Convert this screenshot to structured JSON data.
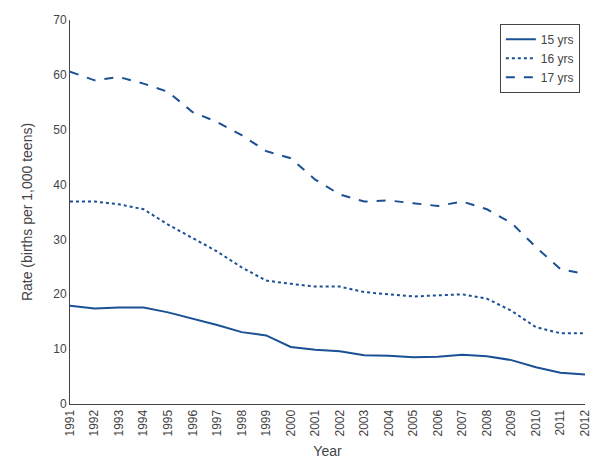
{
  "chart_data": {
    "type": "line",
    "xlabel": "Year",
    "ylabel": "Rate (births per 1,000 teens)",
    "x": [
      1991,
      1992,
      1993,
      1994,
      1995,
      1996,
      1997,
      1998,
      1999,
      2000,
      2001,
      2002,
      2003,
      2004,
      2005,
      2006,
      2007,
      2008,
      2009,
      2010,
      2011,
      2012
    ],
    "series": [
      {
        "name": "15 yrs",
        "color": "#1a5094",
        "line_style": "solid",
        "values": [
          17.9,
          17.4,
          17.6,
          17.6,
          16.7,
          15.6,
          14.4,
          13.1,
          12.5,
          10.4,
          9.9,
          9.6,
          8.9,
          8.8,
          8.5,
          8.6,
          9.0,
          8.7,
          8.0,
          6.7,
          5.7,
          5.4
        ]
      },
      {
        "name": "16 yrs",
        "color": "#1a5094",
        "line_style": "dotted",
        "values": [
          36.9,
          36.9,
          36.4,
          35.5,
          32.7,
          30.2,
          27.8,
          24.9,
          22.5,
          21.9,
          21.4,
          21.4,
          20.4,
          20.0,
          19.6,
          19.8,
          20.0,
          19.2,
          17.0,
          14.0,
          12.9,
          12.9
        ]
      },
      {
        "name": "17 yrs",
        "color": "#1a5094",
        "line_style": "dashed",
        "values": [
          60.6,
          59.0,
          59.6,
          58.4,
          56.9,
          53.2,
          51.4,
          49.0,
          46.1,
          44.8,
          40.9,
          38.2,
          36.9,
          37.1,
          36.6,
          36.1,
          36.9,
          35.5,
          33.0,
          28.6,
          24.6,
          23.7
        ]
      }
    ],
    "xlim": [
      1991,
      2012
    ],
    "xticks": [
      1991,
      1992,
      1993,
      1994,
      1995,
      1996,
      1997,
      1998,
      1999,
      2000,
      2001,
      2002,
      2003,
      2004,
      2005,
      2006,
      2007,
      2008,
      2009,
      2010,
      2011,
      2012
    ],
    "ylim": [
      0,
      70
    ],
    "yticks": [
      0,
      10,
      20,
      30,
      40,
      50,
      60,
      70
    ],
    "grid": false,
    "legend": "upper right"
  }
}
